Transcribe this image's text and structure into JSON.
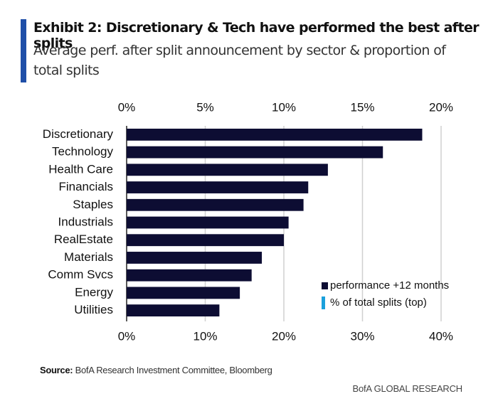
{
  "chart_data": {
    "type": "bar",
    "orientation": "horizontal",
    "title": "Exhibit 2: Discretionary & Tech have performed the best after splits",
    "subtitle": "Average perf. after split announcement by sector & proportion of total splits",
    "categories": [
      "Discretionary",
      "Technology",
      "Health Care",
      "Financials",
      "Staples",
      "Industrials",
      "RealEstate",
      "Materials",
      "Comm Svcs",
      "Energy",
      "Utilities"
    ],
    "series": [
      {
        "name": "performance +12 months",
        "color": "#0d0d33",
        "axis": "x",
        "values": [
          37.6,
          32.6,
          25.6,
          23.1,
          22.5,
          20.6,
          20.0,
          17.2,
          15.9,
          14.4,
          11.8
        ]
      },
      {
        "name": "% of total splits (top)",
        "color": "#1aa0dc",
        "axis": "x2",
        "values": [
          null,
          null,
          null,
          null,
          null,
          null,
          null,
          null,
          null,
          null,
          null
        ]
      }
    ],
    "xlim": [
      0,
      40
    ],
    "xticks": [
      {
        "value": 0,
        "label": "0%"
      },
      {
        "value": 10,
        "label": "10%"
      },
      {
        "value": 20,
        "label": "20%"
      },
      {
        "value": 30,
        "label": "30%"
      },
      {
        "value": 40,
        "label": "40%"
      }
    ],
    "x2lim": [
      0,
      20
    ],
    "x2ticks": [
      {
        "value": 0,
        "label": "0%"
      },
      {
        "value": 5,
        "label": "5%"
      },
      {
        "value": 10,
        "label": "10%"
      },
      {
        "value": 15,
        "label": "15%"
      },
      {
        "value": 20,
        "label": "20%"
      }
    ],
    "grid": true,
    "legend_position": "lower right",
    "source_label": "Source:",
    "source": "BofA Research Investment Committee, Bloomberg",
    "footer": "BofA GLOBAL RESEARCH"
  }
}
